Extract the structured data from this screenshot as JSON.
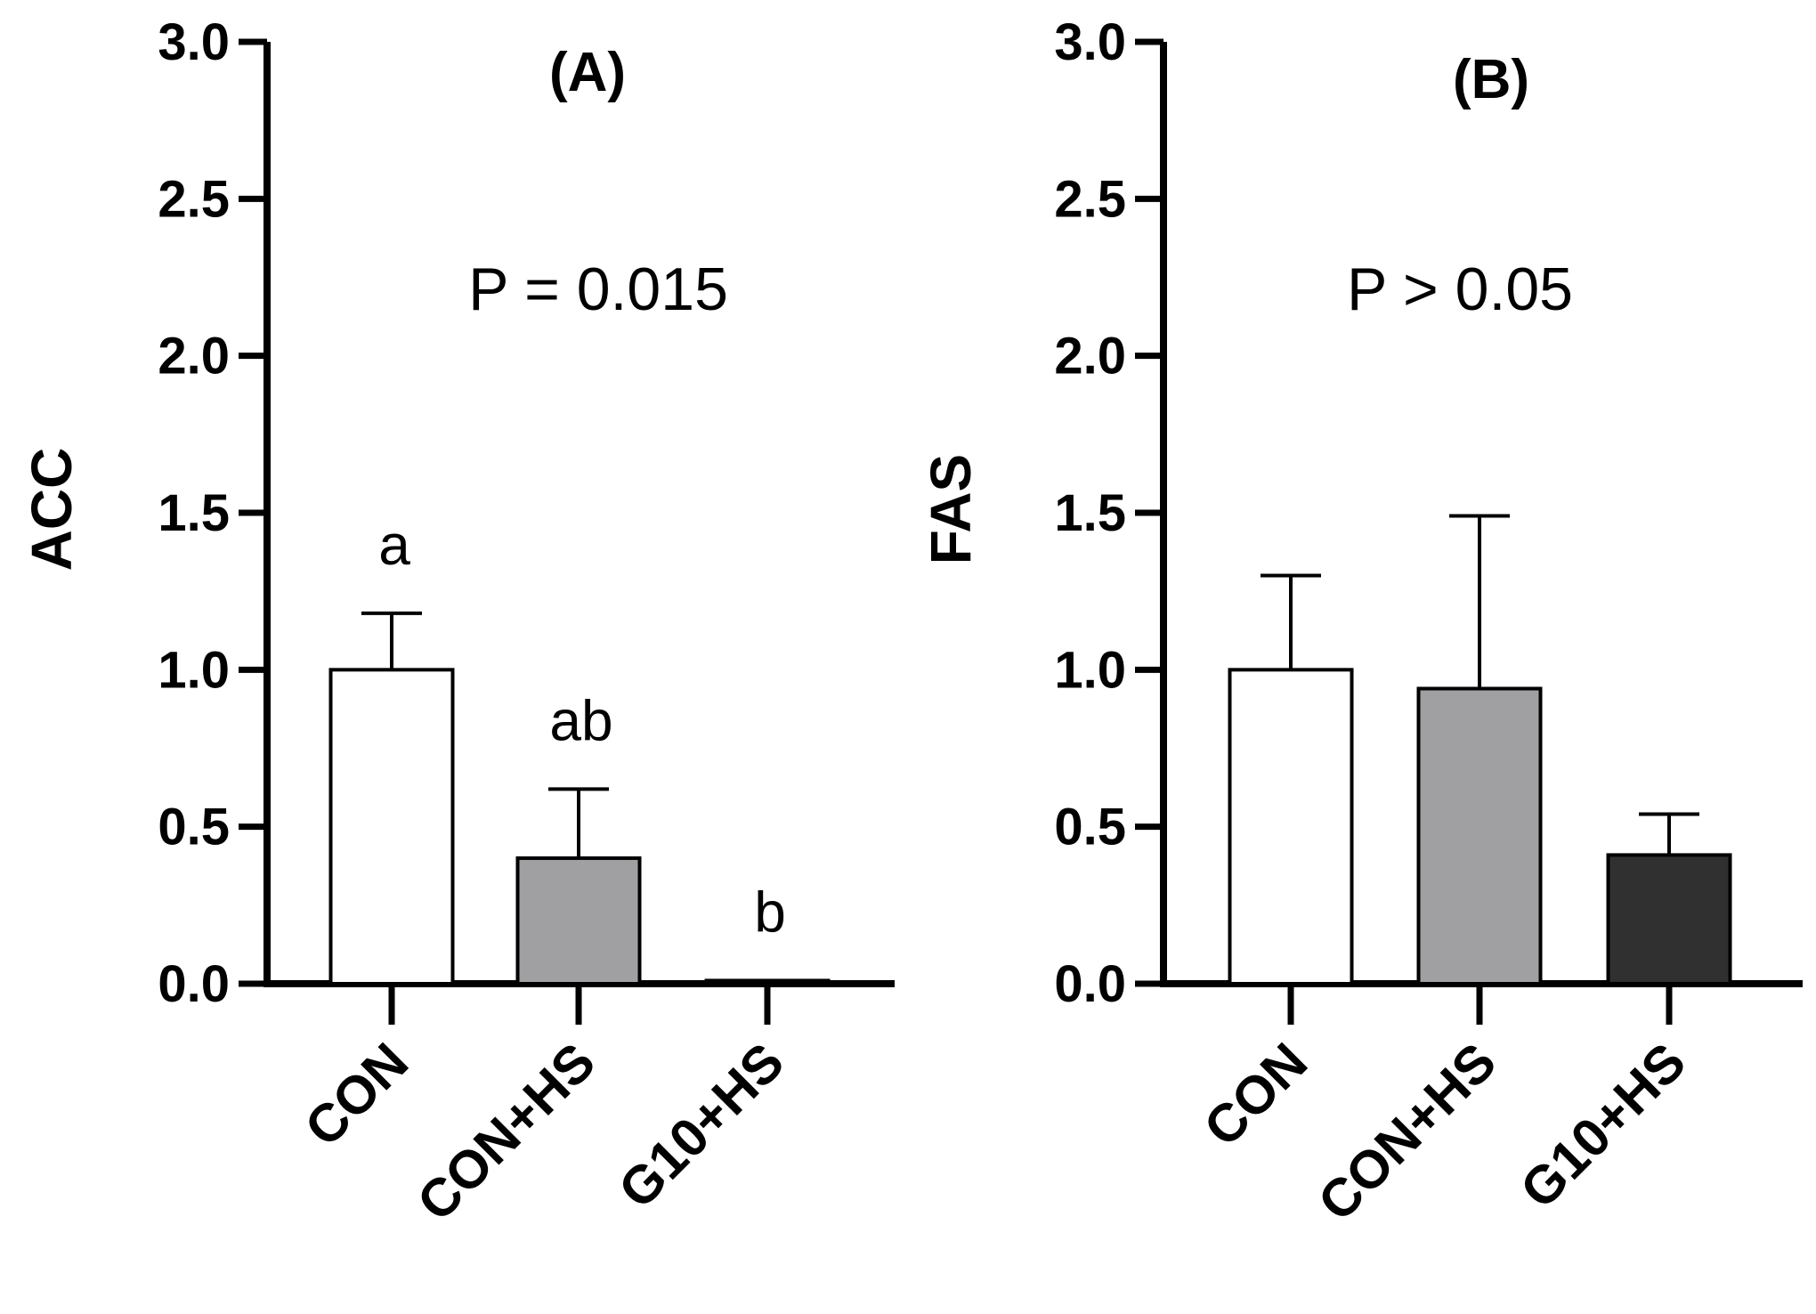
{
  "chart_data": [
    {
      "type": "bar",
      "title": "(A)",
      "annotation": "P = 0.015",
      "xlabel": "",
      "ylabel": "ACC",
      "ylim": [
        0,
        3.0
      ],
      "yticks": [
        "0.0",
        "0.5",
        "1.0",
        "1.5",
        "2.0",
        "2.5",
        "3.0"
      ],
      "categories": [
        "CON",
        "CON+HS",
        "G10+HS"
      ],
      "values": [
        1.0,
        0.4,
        0.01
      ],
      "errors": [
        0.18,
        0.22,
        0.0
      ],
      "letters": [
        "a",
        "ab",
        "b"
      ],
      "colors": [
        "#ffffff",
        "#a0a0a2",
        "#303030"
      ]
    },
    {
      "type": "bar",
      "title": "(B)",
      "annotation": "P > 0.05",
      "xlabel": "",
      "ylabel": "FAS",
      "ylim": [
        0,
        3.0
      ],
      "yticks": [
        "0.0",
        "0.5",
        "1.0",
        "1.5",
        "2.0",
        "2.5",
        "3.0"
      ],
      "categories": [
        "CON",
        "CON+HS",
        "G10+HS"
      ],
      "values": [
        1.0,
        0.94,
        0.41
      ],
      "errors": [
        0.3,
        0.55,
        0.13
      ],
      "letters": [
        "",
        "",
        ""
      ],
      "colors": [
        "#ffffff",
        "#a0a0a2",
        "#303030"
      ]
    }
  ]
}
